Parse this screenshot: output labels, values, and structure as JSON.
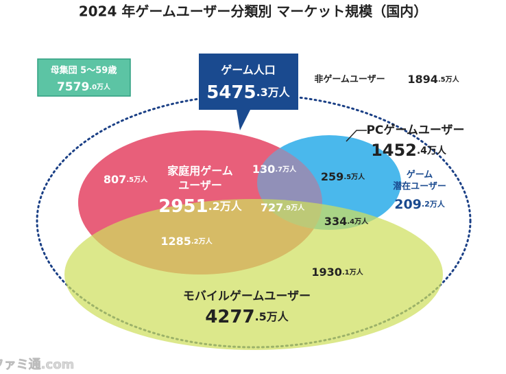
{
  "title": "2024 年ゲームユーザー分類別 マーケット規模（国内）",
  "population_box": {
    "label": "母集団 5～59歳",
    "value": "7579.0万人"
  },
  "game_population": {
    "label": "ゲーム人口",
    "value": "5475.3万人"
  },
  "non_game": {
    "label": "非ゲームユーザー",
    "value": "1894.5万人"
  },
  "pc": {
    "label": "PCゲームユーザー",
    "value": "1452.4万人"
  },
  "latent": {
    "label_lines": [
      "ゲーム",
      "潜在ユーザー"
    ],
    "value": "209.2万人"
  },
  "console": {
    "label_lines": [
      "家庭用ゲーム",
      "ユーザー"
    ],
    "value": "2951.2万人"
  },
  "mobile": {
    "label": "モバイルゲームユーザー",
    "value": "4277.5万人"
  },
  "segments": [
    "807.5万人",
    "130.7万人",
    "259.5万人",
    "727.9万人",
    "334.4万人",
    "1285.2万人",
    "1930.1万人"
  ],
  "watermark": "ファミ通.com"
}
